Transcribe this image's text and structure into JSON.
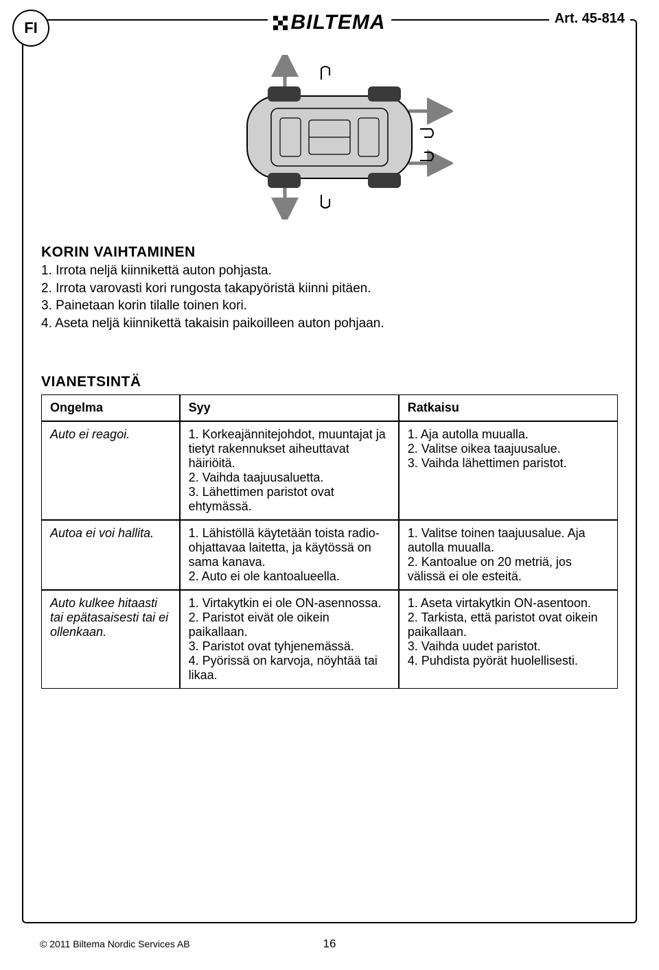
{
  "header": {
    "lang_badge": "FI",
    "brand": "BILTEMA",
    "article": "Art. 45-814"
  },
  "section1": {
    "heading": "KORIN VAIHTAMINEN",
    "items": [
      "1. Irrota neljä kiinnikettä auton pohjasta.",
      "2. Irrota varovasti kori rungosta takapyöristä kiinni pitäen.",
      "3. Painetaan korin tilalle toinen kori.",
      "4. Aseta neljä kiinnikettä takaisin paikoilleen auton pohjaan."
    ]
  },
  "section2": {
    "heading": "VIANETSINTÄ",
    "columns": {
      "c1": "Ongelma",
      "c2": "Syy",
      "c3": "Ratkaisu"
    },
    "rows": [
      {
        "problem": "Auto ei reagoi.",
        "cause": "1. Korkeajännitejohdot, muuntajat ja tietyt rakennukset aiheuttavat häiriöitä.\n2. Vaihda taajuusaluetta.\n3. Lähettimen paristot ovat ehtymässä.",
        "solution": "1. Aja autolla muualla.\n2. Valitse oikea taajuusalue.\n3. Vaihda lähettimen paristot."
      },
      {
        "problem": "Autoa ei voi hallita.",
        "cause": "1. Lähistöllä käytetään toista radio-ohjattavaa laitetta, ja käytössä on sama kanava.\n2. Auto ei ole kantoalueella.",
        "solution": "1. Valitse toinen taajuusalue. Aja autolla muualla.\n2. Kantoalue on 20 metriä, jos välissä ei ole esteitä."
      },
      {
        "problem": "Auto kulkee hitaasti tai epätasaisesti tai ei ollenkaan.",
        "cause": "1. Virtakytkin ei ole ON-asennossa.\n2. Paristot eivät ole oikein paikallaan.\n3. Paristot ovat tyhjenemässä.\n4. Pyörissä on karvoja, nöyhtää tai likaa.",
        "solution": "1. Aseta virtakytkin ON-asentoon.\n2. Tarkista, että paristot ovat oikein paikallaan.\n3. Vaihda uudet paristot.\n4. Puhdista pyörät huolellisesti."
      }
    ]
  },
  "footer": {
    "copyright": "© 2011 Biltema Nordic Services AB",
    "page": "16"
  },
  "diagram": {
    "body_fill": "#cfcfcf",
    "body_stroke": "#000000",
    "wheel_fill": "#3a3a3a",
    "arrow_stroke": "#808080",
    "clip_stroke": "#000000",
    "bg": "#ffffff"
  }
}
